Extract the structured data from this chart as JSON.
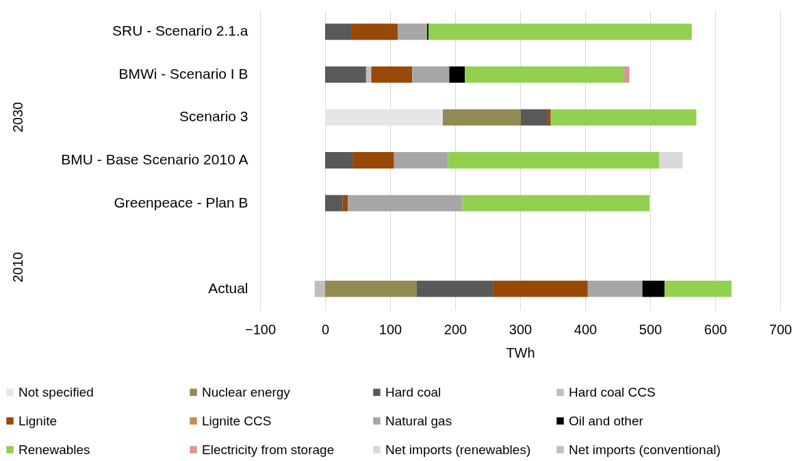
{
  "chart_data": {
    "type": "bar",
    "orientation": "horizontal",
    "stacked": true,
    "categories": [
      "SRU - Scenario 2.1.a",
      "BMWi - Scenario I B",
      "Scenario 3",
      "BMU - Base Scenario 2010 A",
      "Greenpeace - Plan B",
      null,
      "Actual"
    ],
    "series": [
      {
        "name": "Not specified",
        "color": "#e6e6e6",
        "values": [
          null,
          null,
          181,
          null,
          null,
          null,
          null
        ]
      },
      {
        "name": "Nuclear energy",
        "color": "#948a54",
        "values": [
          null,
          null,
          120,
          null,
          null,
          null,
          141
        ]
      },
      {
        "name": "Hard coal",
        "color": "#595959",
        "values": [
          41,
          63,
          42,
          42,
          27,
          null,
          117
        ]
      },
      {
        "name": "Hard coal CCS",
        "color": "#bfbfbf",
        "values": [
          null,
          8,
          null,
          null,
          null,
          null,
          null
        ]
      },
      {
        "name": "Lignite",
        "color": "#984807",
        "values": [
          71,
          63,
          4,
          64,
          8,
          null,
          146
        ]
      },
      {
        "name": "Lignite CCS",
        "color": "#c98a50",
        "values": [
          null,
          null,
          null,
          null,
          null,
          null,
          null
        ]
      },
      {
        "name": "Natural gas",
        "color": "#a6a6a6",
        "values": [
          45,
          57,
          null,
          83,
          176,
          null,
          84
        ]
      },
      {
        "name": "Oil and other",
        "color": "#000000",
        "values": [
          2,
          24,
          null,
          null,
          null,
          null,
          34
        ]
      },
      {
        "name": "Renewables",
        "color": "#92d050",
        "values": [
          405,
          245,
          224,
          325,
          288,
          null,
          103
        ]
      },
      {
        "name": "Electricity from storage",
        "color": "#d99694",
        "values": [
          null,
          8,
          null,
          null,
          null,
          null,
          null
        ]
      },
      {
        "name": "Net imports (renewables)",
        "color": "#d9d9d9",
        "values": [
          null,
          null,
          null,
          36,
          null,
          null,
          null
        ]
      },
      {
        "name": "Net imports (conventional)",
        "color": "#bfbfbf",
        "values": [
          null,
          null,
          null,
          null,
          null,
          null,
          -16
        ]
      }
    ],
    "xlim": [
      -100,
      700
    ],
    "xticks": [
      -100,
      0,
      100,
      200,
      300,
      400,
      500,
      600,
      700
    ],
    "xlabel": "TWh",
    "grid": "x",
    "legend": "bottom",
    "annotations": [
      "2030",
      "2010"
    ]
  }
}
